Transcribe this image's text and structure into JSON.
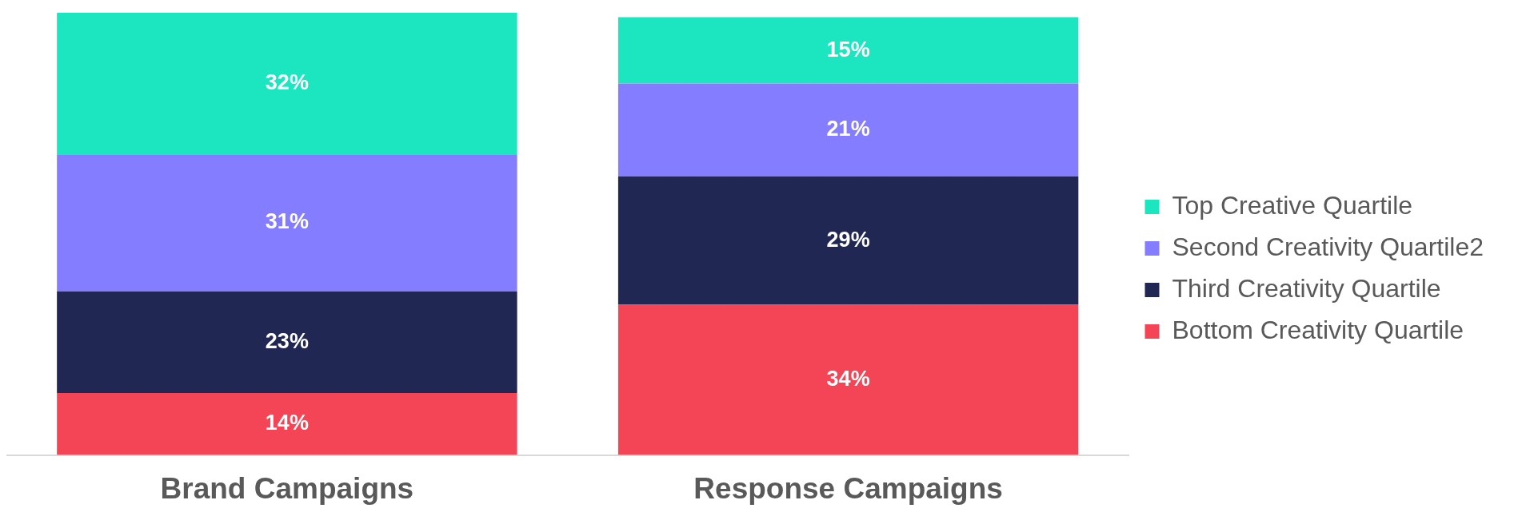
{
  "chart_data": {
    "type": "bar",
    "stacked": true,
    "categories": [
      "Brand Campaigns",
      "Response Campaigns"
    ],
    "series": [
      {
        "name": "Bottom Creativity Quartile",
        "color": "#f44556",
        "values": [
          14,
          34
        ],
        "value_labels": [
          "14%",
          "34%"
        ]
      },
      {
        "name": "Third Creativity Quartile",
        "color": "#202752",
        "values": [
          23,
          29
        ],
        "value_labels": [
          "23%",
          "29%"
        ]
      },
      {
        "name": "Second Creativity Quartile2",
        "color": "#857dff",
        "values": [
          31,
          21
        ],
        "value_labels": [
          "31%",
          "21%"
        ]
      },
      {
        "name": "Top Creative Quartile",
        "color": "#1ce6c0",
        "values": [
          32,
          15
        ],
        "value_labels": [
          "32%",
          "15%"
        ]
      }
    ],
    "legend": "right",
    "grid": false
  }
}
